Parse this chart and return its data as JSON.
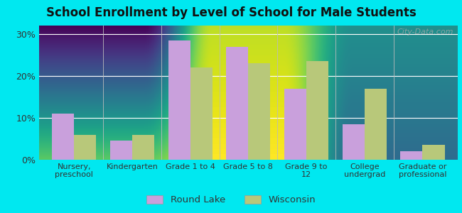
{
  "categories": [
    "Nursery,\npreschool",
    "Kindergarten",
    "Grade 1 to 4",
    "Grade 5 to 8",
    "Grade 9 to\n12",
    "College\nundergrad",
    "Graduate or\nprofessional"
  ],
  "round_lake": [
    11.0,
    4.5,
    28.5,
    27.0,
    17.0,
    8.5,
    2.0
  ],
  "wisconsin": [
    6.0,
    6.0,
    22.0,
    23.0,
    23.5,
    17.0,
    3.5
  ],
  "round_lake_color": "#c9a0dc",
  "wisconsin_color": "#b8c87a",
  "title": "School Enrollment by Level of School for Male Students",
  "title_fontsize": 12,
  "title_fontweight": "bold",
  "ylabel_ticks": [
    "0%",
    "10%",
    "20%",
    "30%"
  ],
  "ytick_vals": [
    0,
    10,
    20,
    30
  ],
  "ylim": [
    0,
    32
  ],
  "outer_background": "#00e8f0",
  "legend_labels": [
    "Round Lake",
    "Wisconsin"
  ],
  "bar_width": 0.38,
  "watermark": "City-Data.com"
}
